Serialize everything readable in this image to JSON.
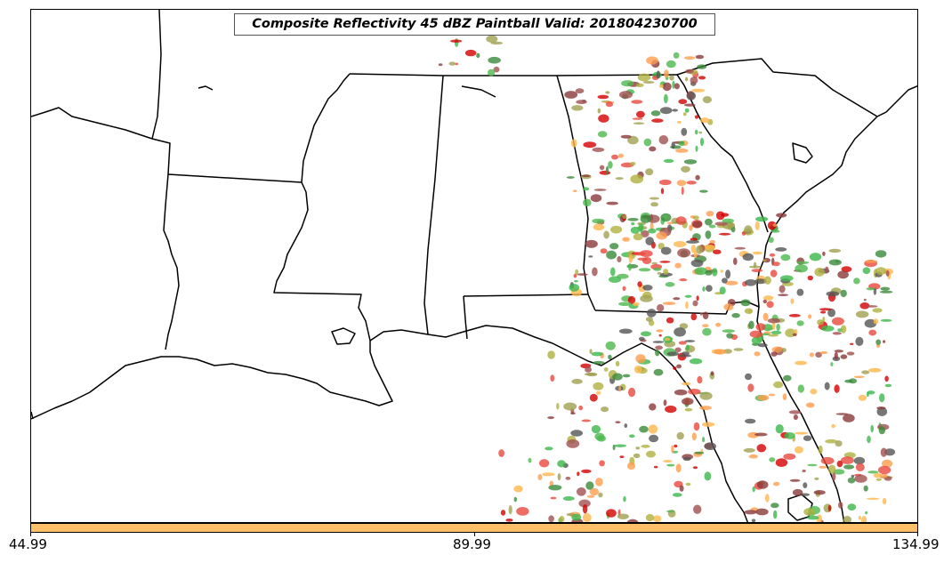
{
  "title": "Composite Reflectivity 45 dBZ Paintball Valid: 201804230700",
  "colorbar": {
    "color": "#ffc06a",
    "ticks": [
      "44.99",
      "89.99",
      "134.99"
    ]
  },
  "colors": {
    "state_borders": "#000000",
    "ensemble_members": [
      "#e8493f",
      "#ff9d4d",
      "#ffb84d",
      "#a0a050",
      "#3cb84a",
      "#4db84d",
      "#3a8a3a",
      "#8b3a3a",
      "#a05050",
      "#555555",
      "#d40000",
      "#b0b040"
    ]
  }
}
